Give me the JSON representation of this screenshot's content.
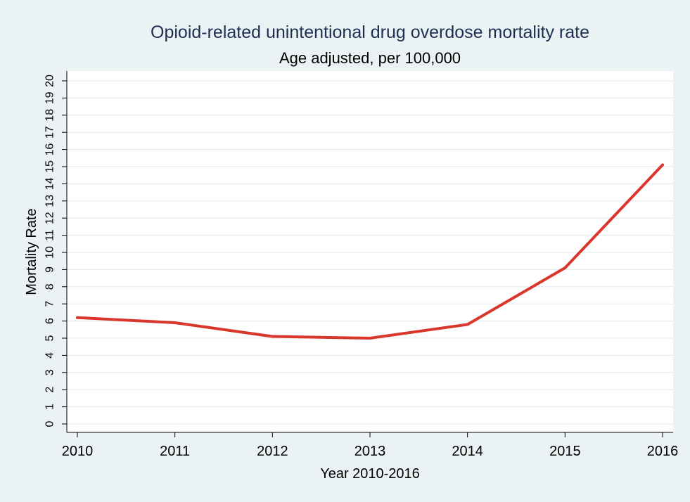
{
  "chart_data": {
    "type": "line",
    "title": "Opioid-related unintentional drug overdose mortality rate",
    "subtitle": "Age adjusted, per 100,000",
    "xlabel": "Year 2010-2016",
    "ylabel": "Mortality Rate",
    "x": [
      "2010",
      "2011",
      "2012",
      "2013",
      "2014",
      "2015",
      "2016"
    ],
    "series": [
      {
        "name": "Mortality Rate",
        "values": [
          6.2,
          5.9,
          5.1,
          5.0,
          5.8,
          9.1,
          15.1
        ]
      }
    ],
    "yticks": [
      "0",
      "1",
      "2",
      "3",
      "4",
      "5",
      "6",
      "7",
      "8",
      "9",
      "10",
      "11",
      "12",
      "13",
      "14",
      "15",
      "16",
      "17",
      "18",
      "19",
      "20"
    ],
    "ylim": [
      0,
      20
    ],
    "grid": true,
    "legend": "none",
    "colors": {
      "frame": "#eaf2f3",
      "plot": "#ffffff",
      "line": "#d9372c",
      "grid": "#e3ebee",
      "title": "#1d2f52",
      "text": "#000000"
    }
  }
}
